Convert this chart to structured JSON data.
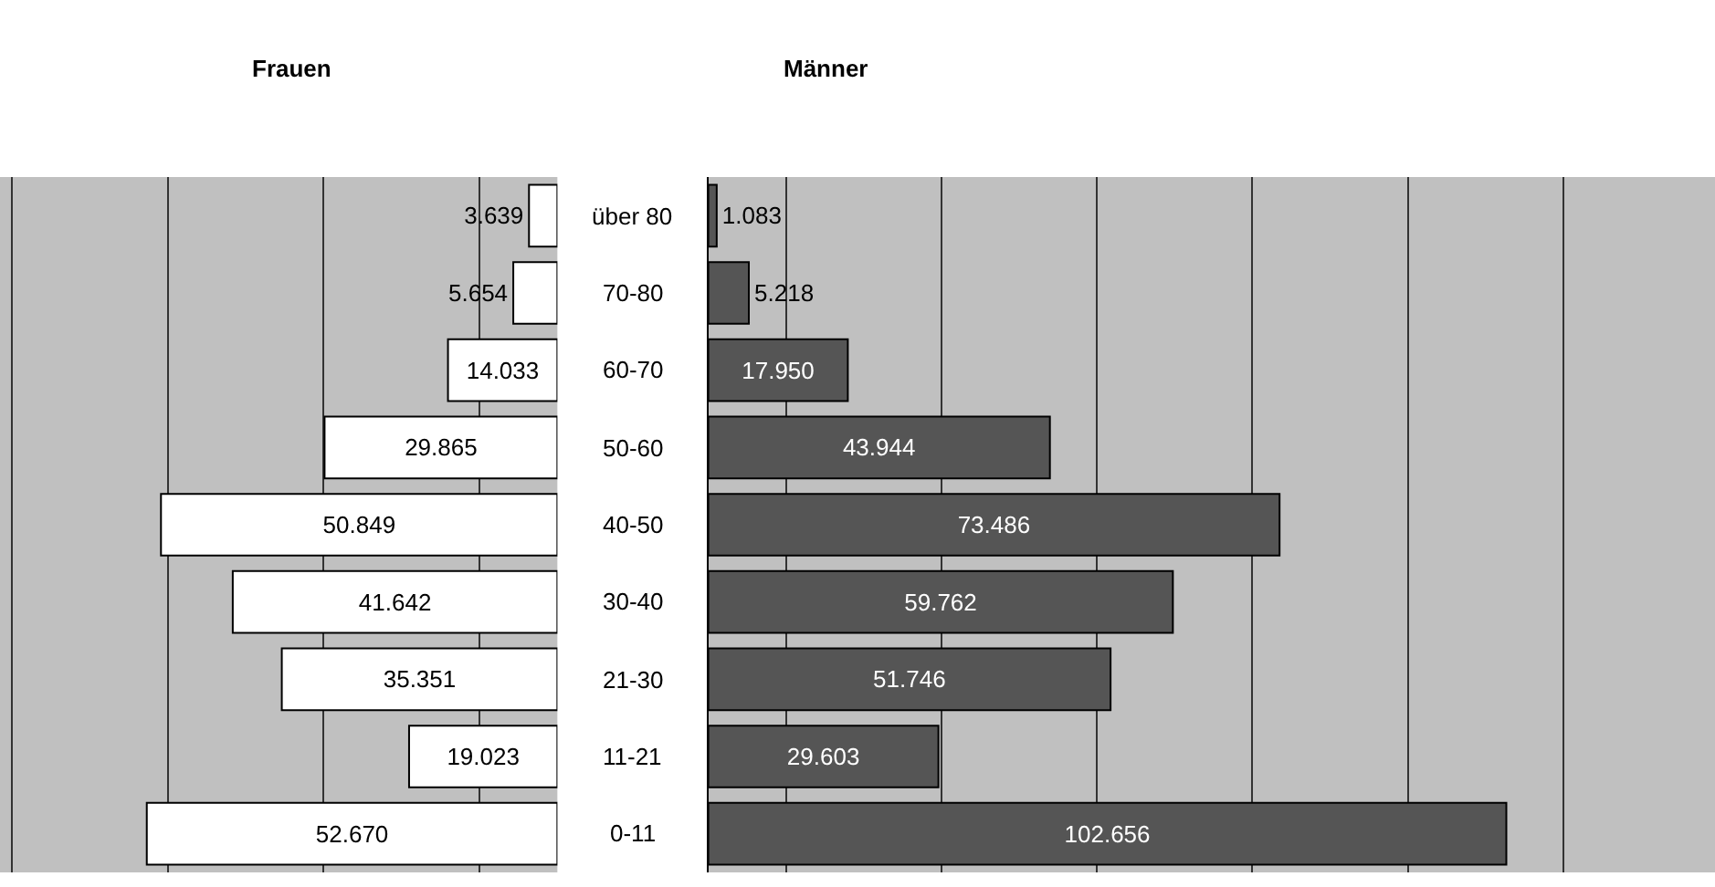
{
  "chart_data": [
    {
      "type": "bar",
      "orientation": "horizontal",
      "title": "Frauen",
      "categories": [
        "über 80",
        "70-80",
        "60-70",
        "50-60",
        "40-50",
        "30-40",
        "21-30",
        "11-21",
        "0-11"
      ],
      "series": [
        {
          "color": "#ffffff",
          "values": [
            3639,
            5654,
            14033,
            29865,
            50849,
            41642,
            35351,
            19023,
            52670
          ],
          "value_labels": [
            "3.639",
            "5.654",
            "14.033",
            "29.865",
            "50.849",
            "41.642",
            "35.351",
            "19.023",
            "52.670"
          ]
        }
      ],
      "xlim": [
        71500,
        0
      ],
      "xticks": [
        {
          "value": 10000,
          "label": null
        },
        {
          "value": 30000,
          "label": null
        },
        {
          "value": 50000,
          "label": null
        },
        {
          "value": 70000,
          "label": null
        }
      ],
      "grid": "x",
      "tick_labels": "y"
    },
    {
      "type": "bar",
      "orientation": "horizontal",
      "title": "Männer",
      "categories": [
        null,
        null,
        null,
        null,
        null,
        null,
        null,
        null,
        null
      ],
      "series": [
        {
          "color": "#555555",
          "values": [
            1083,
            5218,
            17950,
            43944,
            73486,
            59762,
            51746,
            29603,
            102656
          ],
          "value_labels": [
            "1.083",
            "5.218",
            "17.950",
            "43.944",
            "73.486",
            "59.762",
            "51.746",
            "29.603",
            "102.656"
          ]
        }
      ],
      "xlim": [
        0,
        129500
      ],
      "xticks": [
        {
          "value": 10000,
          "label": null
        },
        {
          "value": 30000,
          "label": null
        },
        {
          "value": 50000,
          "label": null
        },
        {
          "value": 70000,
          "label": null
        },
        {
          "value": 90000,
          "label": null
        },
        {
          "value": 110000,
          "label": null
        }
      ],
      "grid": "x",
      "tick_labels": false
    }
  ]
}
